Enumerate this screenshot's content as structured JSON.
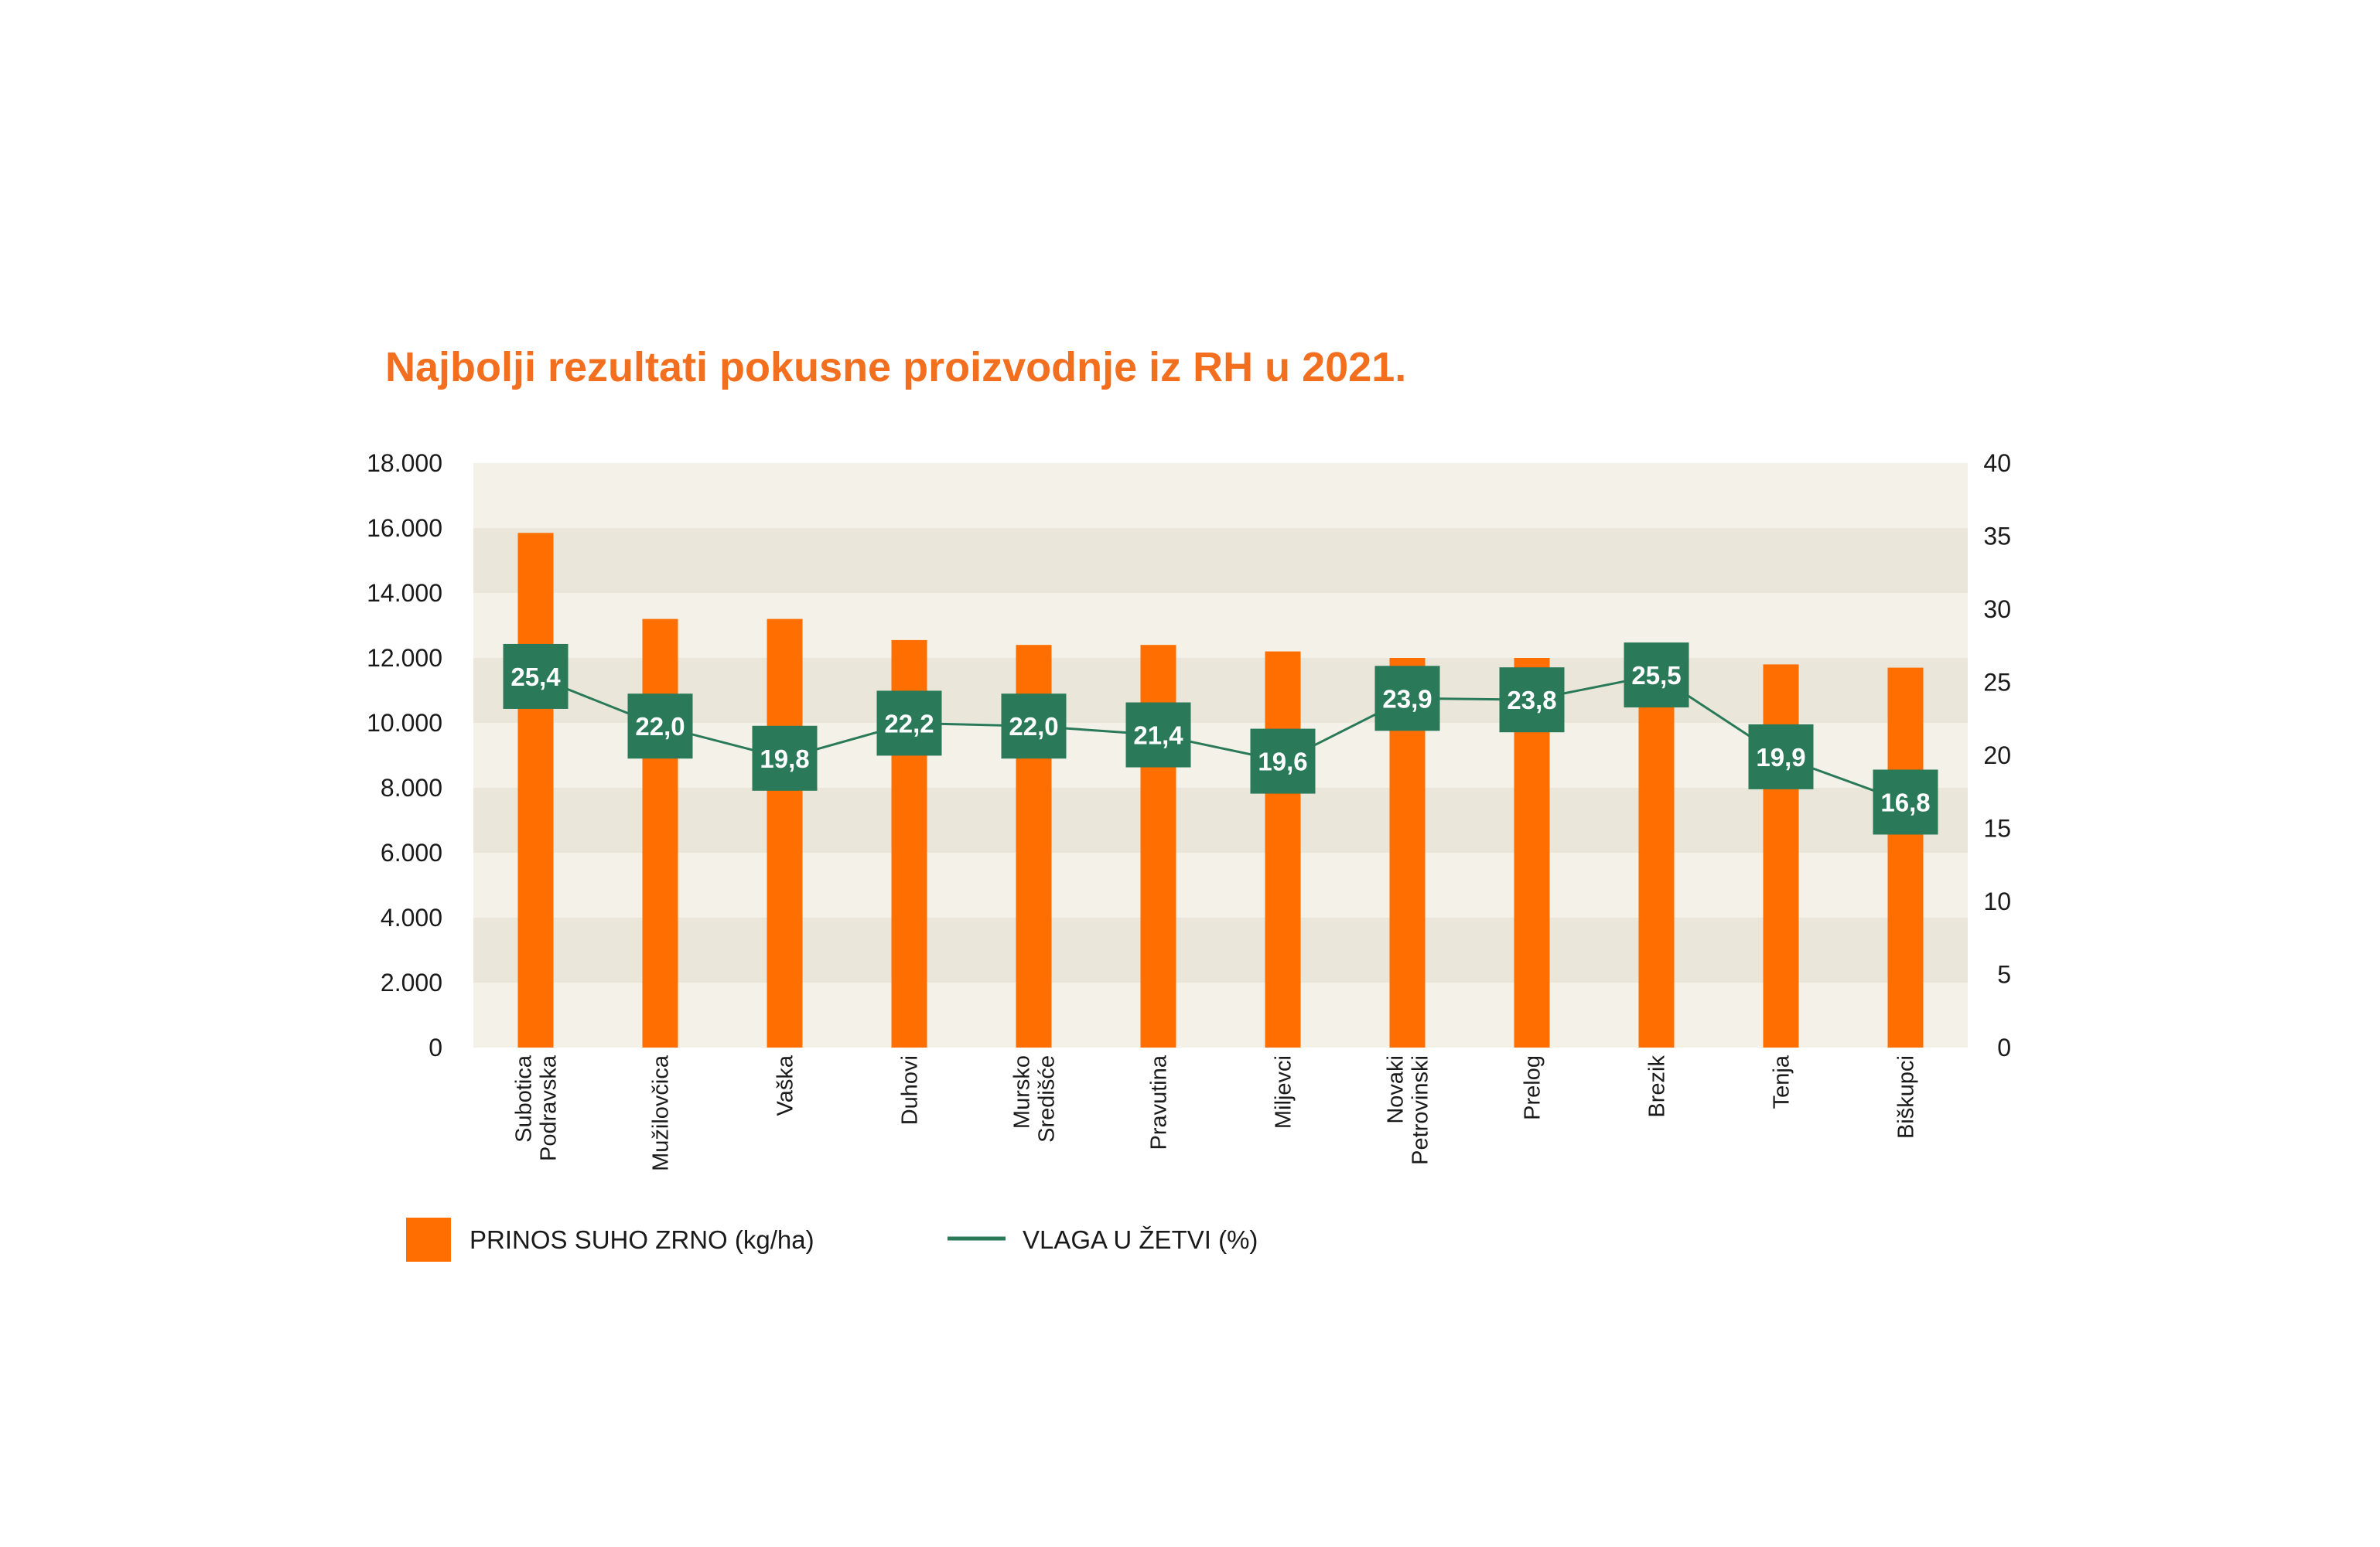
{
  "title": "Najbolji rezultati pokusne proizvodnje iz RH u 2021.",
  "colors": {
    "title": "#f26f1f",
    "bar": "#ff6e00",
    "line": "#2a7a5a",
    "plot_band_light": "#f3f1e8",
    "plot_band_dark": "#eae7da"
  },
  "chart_data": {
    "type": "bar",
    "categories": [
      [
        "Subotica",
        "Podravska"
      ],
      [
        "Mužilovčica"
      ],
      [
        "Vaška"
      ],
      [
        "Duhovi"
      ],
      [
        "Mursko",
        "Središće"
      ],
      [
        "Pravutina"
      ],
      [
        "Miljevci"
      ],
      [
        "Novaki",
        "Petrovinski"
      ],
      [
        "Prelog"
      ],
      [
        "Brezik"
      ],
      [
        "Tenja"
      ],
      [
        "Biškupci"
      ]
    ],
    "series": [
      {
        "name": "PRINOS SUHO ZRNO (kg/ha)",
        "type": "bar",
        "axis": "left",
        "values": [
          15850,
          13200,
          13200,
          12550,
          12400,
          12400,
          12200,
          12000,
          12000,
          11500,
          11800,
          11700
        ]
      },
      {
        "name": "VLAGA U ŽETVI (%)",
        "type": "line",
        "axis": "right",
        "values": [
          25.4,
          22.0,
          19.8,
          22.2,
          22.0,
          21.4,
          19.6,
          23.9,
          23.8,
          25.5,
          19.9,
          16.8
        ],
        "labels": [
          "25,4",
          "22,0",
          "19,8",
          "22,2",
          "22,0",
          "21,4",
          "19,6",
          "23,9",
          "23,8",
          "25,5",
          "19,9",
          "16,8"
        ]
      }
    ],
    "y_left": {
      "range": [
        0,
        18000
      ],
      "ticks": [
        0,
        2000,
        4000,
        6000,
        8000,
        10000,
        12000,
        14000,
        16000,
        18000
      ],
      "tick_labels": [
        "0",
        "2.000",
        "4.000",
        "6.000",
        "8.000",
        "10.000",
        "12.000",
        "14.000",
        "16.000",
        "18.000"
      ]
    },
    "y_right": {
      "range": [
        0,
        40
      ],
      "ticks": [
        0,
        5,
        10,
        15,
        20,
        25,
        30,
        35,
        40
      ],
      "tick_labels": [
        "0",
        "5",
        "10",
        "15",
        "20",
        "25",
        "30",
        "35",
        "40"
      ]
    },
    "grid": false,
    "legend": {
      "position": "bottom-left",
      "items": [
        {
          "label": "PRINOS SUHO ZRNO (kg/ha)",
          "symbol": "bar"
        },
        {
          "label": "VLAGA U ŽETVI (%)",
          "symbol": "line"
        }
      ]
    }
  }
}
